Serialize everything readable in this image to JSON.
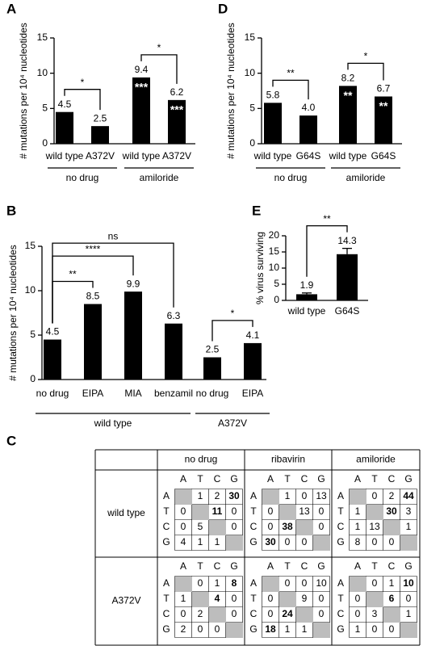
{
  "chart_data": [
    {
      "type": "bar",
      "label": "A",
      "ylabel": "# mutations per 10⁴ nucleotides",
      "categories": [
        "wild type",
        "A372V",
        "wild type",
        "A372V"
      ],
      "values": [
        4.5,
        2.5,
        9.4,
        6.2
      ],
      "color": "#000000",
      "bar_annotations": [
        null,
        null,
        "***",
        "***"
      ],
      "groups": [
        {
          "name": "no drug",
          "size": 2
        },
        {
          "name": "amiloride",
          "size": 2
        }
      ],
      "brackets": [
        {
          "from": 0,
          "to": 1,
          "label": "*"
        },
        {
          "from": 2,
          "to": 3,
          "label": "*"
        }
      ],
      "ylim": [
        0,
        15
      ],
      "yticks": [
        0,
        5,
        10,
        15
      ]
    },
    {
      "type": "bar",
      "label": "D",
      "ylabel": "# mutations per 10⁴ nucleotides",
      "categories": [
        "wild type",
        "G64S",
        "wild type",
        "G64S"
      ],
      "values": [
        5.8,
        4.0,
        8.2,
        6.7
      ],
      "value_labels": [
        "5.8",
        "4.0",
        "8.2",
        "6.7"
      ],
      "color": "#000000",
      "bar_annotations": [
        null,
        null,
        "**",
        "**"
      ],
      "groups": [
        {
          "name": "no drug",
          "size": 2
        },
        {
          "name": "amiloride",
          "size": 2
        }
      ],
      "brackets": [
        {
          "from": 0,
          "to": 1,
          "label": "**"
        },
        {
          "from": 2,
          "to": 3,
          "label": "*"
        }
      ],
      "ylim": [
        0,
        15
      ],
      "yticks": [
        0,
        5,
        10,
        15
      ]
    },
    {
      "type": "bar",
      "label": "B",
      "ylabel": "# mutations per 10⁴ nucleotides",
      "categories": [
        "no drug",
        "EIPA",
        "MIA",
        "benzamil",
        "no drug",
        "EIPA"
      ],
      "values": [
        4.5,
        8.5,
        9.9,
        6.3,
        2.5,
        4.1
      ],
      "color": "#000000",
      "groups": [
        {
          "name": "wild type",
          "size": 4
        },
        {
          "name": "A372V",
          "size": 2
        }
      ],
      "brackets": [
        {
          "from": 0,
          "to": 1,
          "label": "**"
        },
        {
          "from": 0,
          "to": 2,
          "label": "****"
        },
        {
          "from": 0,
          "to": 3,
          "label": "ns"
        },
        {
          "from": 4,
          "to": 5,
          "label": "*"
        }
      ],
      "ylim": [
        0,
        15
      ],
      "yticks": [
        0,
        5,
        10,
        15
      ]
    },
    {
      "type": "bar",
      "label": "E",
      "ylabel": "% virus surviving",
      "categories": [
        "wild type",
        "G64S"
      ],
      "values": [
        1.9,
        14.3
      ],
      "errors": [
        0.4,
        1.8
      ],
      "color": "#000000",
      "brackets": [
        {
          "from": 0,
          "to": 1,
          "label": "**"
        }
      ],
      "ylim": [
        0,
        20
      ],
      "yticks": [
        0,
        5,
        10,
        15,
        20
      ]
    }
  ],
  "table": {
    "label": "C",
    "columns": [
      "no drug",
      "ribavirin",
      "amiloride"
    ],
    "bases": [
      "A",
      "T",
      "C",
      "G"
    ],
    "rows": [
      {
        "name": "wild type",
        "blocks": [
          {
            "values": [
              [
                null,
                1,
                2,
                30
              ],
              [
                0,
                null,
                11,
                0
              ],
              [
                0,
                5,
                null,
                0
              ],
              [
                4,
                1,
                1,
                null
              ]
            ],
            "bold": [
              [
                0,
                3
              ],
              [
                1,
                2
              ]
            ]
          },
          {
            "values": [
              [
                null,
                1,
                0,
                13
              ],
              [
                0,
                null,
                13,
                0
              ],
              [
                0,
                38,
                null,
                0
              ],
              [
                30,
                0,
                0,
                null
              ]
            ],
            "bold": [
              [
                2,
                1
              ],
              [
                3,
                0
              ]
            ]
          },
          {
            "values": [
              [
                null,
                0,
                2,
                44
              ],
              [
                1,
                null,
                30,
                3
              ],
              [
                1,
                13,
                null,
                1
              ],
              [
                8,
                0,
                0,
                null
              ]
            ],
            "bold": [
              [
                0,
                3
              ],
              [
                1,
                2
              ]
            ]
          }
        ]
      },
      {
        "name": "A372V",
        "blocks": [
          {
            "values": [
              [
                null,
                0,
                1,
                8
              ],
              [
                1,
                null,
                4,
                0
              ],
              [
                0,
                2,
                null,
                0
              ],
              [
                2,
                0,
                0,
                null
              ]
            ],
            "bold": [
              [
                0,
                3
              ],
              [
                1,
                2
              ]
            ]
          },
          {
            "values": [
              [
                null,
                0,
                0,
                10
              ],
              [
                0,
                null,
                9,
                0
              ],
              [
                0,
                24,
                null,
                0
              ],
              [
                18,
                1,
                1,
                null
              ]
            ],
            "bold": [
              [
                2,
                1
              ],
              [
                3,
                0
              ]
            ]
          },
          {
            "values": [
              [
                null,
                0,
                1,
                10
              ],
              [
                0,
                null,
                6,
                0
              ],
              [
                0,
                3,
                null,
                1
              ],
              [
                1,
                0,
                0,
                null
              ]
            ],
            "bold": [
              [
                0,
                3
              ],
              [
                1,
                2
              ]
            ]
          }
        ]
      }
    ]
  }
}
